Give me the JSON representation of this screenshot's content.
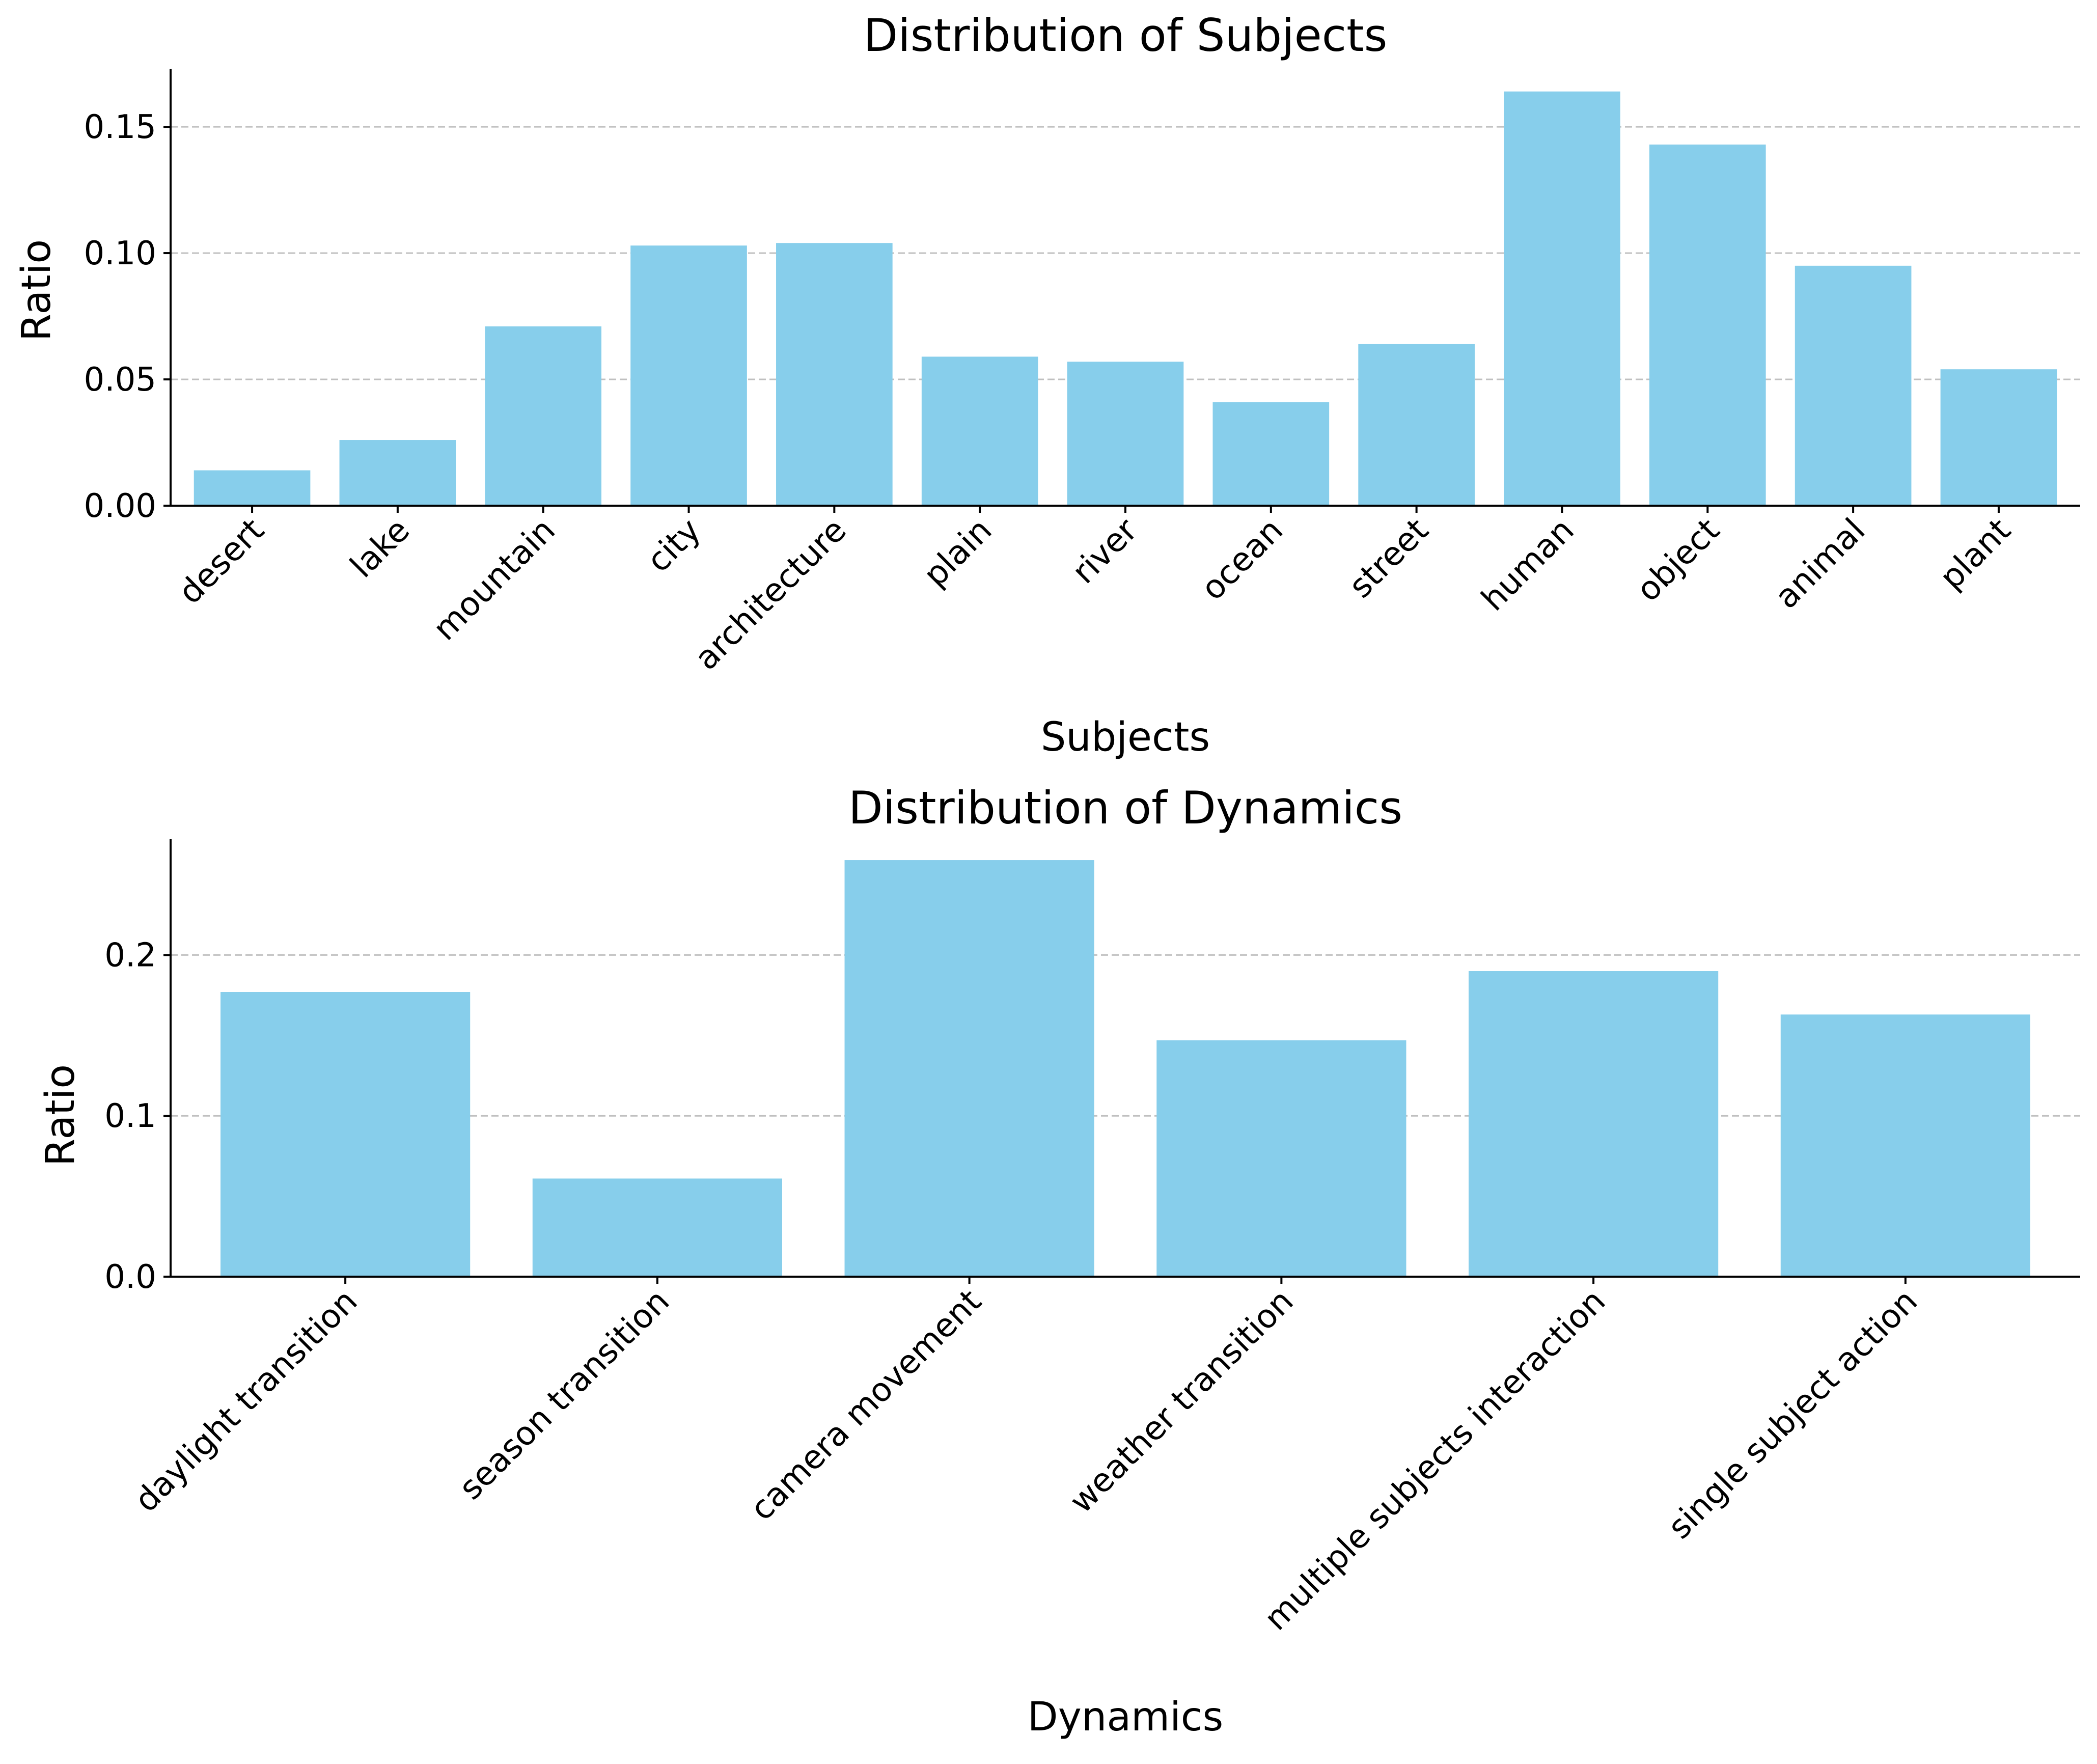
{
  "bar_color": "#87CEEB",
  "grid_color": "#c0c0c0",
  "chart_data": [
    {
      "type": "bar",
      "title": "Distribution of Subjects",
      "xlabel": "Subjects",
      "ylabel": "Ratio",
      "categories": [
        "desert",
        "lake",
        "mountain",
        "city",
        "architecture",
        "plain",
        "river",
        "ocean",
        "street",
        "human",
        "object",
        "animal",
        "plant"
      ],
      "values": [
        0.014,
        0.026,
        0.071,
        0.103,
        0.104,
        0.059,
        0.057,
        0.041,
        0.064,
        0.164,
        0.143,
        0.095,
        0.054
      ],
      "ylim": [
        0,
        0.173
      ],
      "yticks": [
        0.0,
        0.05,
        0.1,
        0.15
      ],
      "ytick_labels": [
        "0.00",
        "0.05",
        "0.10",
        "0.15"
      ],
      "grid": "y-dashed",
      "xtick_rotation": 45
    },
    {
      "type": "bar",
      "title": "Distribution of Dynamics",
      "xlabel": "Dynamics",
      "ylabel": "Ratio",
      "categories": [
        "daylight transition",
        "season transition",
        "camera movement",
        "weather transition",
        "multiple subjects interaction",
        "single subject action"
      ],
      "values": [
        0.177,
        0.061,
        0.259,
        0.147,
        0.19,
        0.163
      ],
      "ylim": [
        0,
        0.272
      ],
      "yticks": [
        0.0,
        0.1,
        0.2
      ],
      "ytick_labels": [
        "0.0",
        "0.1",
        "0.2"
      ],
      "grid": "y-dashed",
      "xtick_rotation": 45
    }
  ]
}
